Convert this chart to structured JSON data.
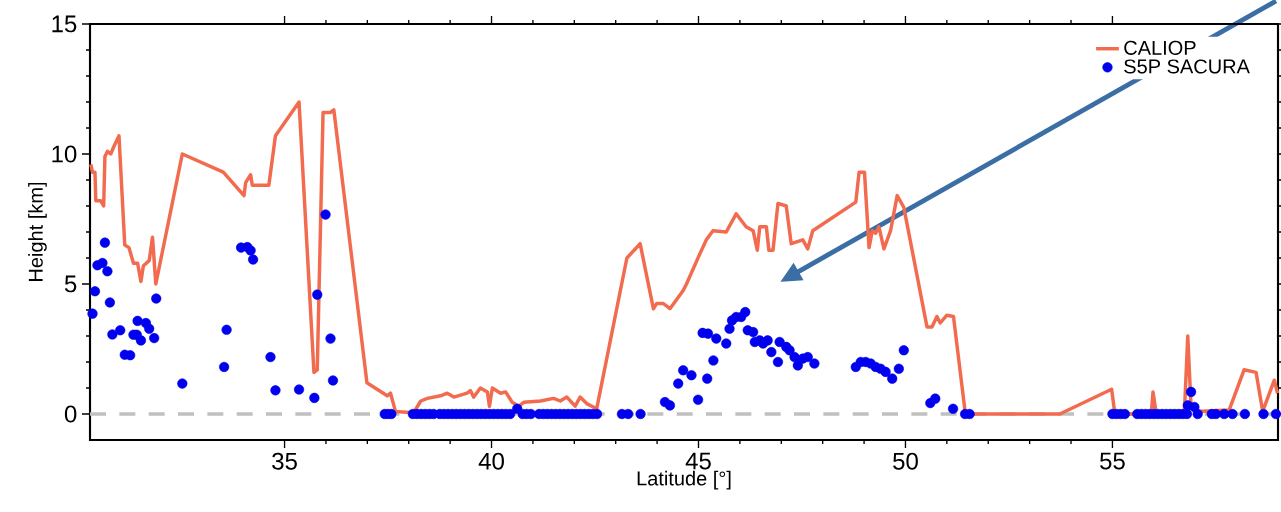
{
  "chart_data": {
    "type": "line",
    "xlabel": "Latitude [°]",
    "ylabel": "Height [km]",
    "xlim": [
      30.3,
      59
    ],
    "ylim": [
      -1,
      15
    ],
    "xticks": [
      35,
      40,
      45,
      50,
      55
    ],
    "yticks": [
      0,
      5,
      10,
      15
    ],
    "legend": "top right",
    "grid": false,
    "ref_lines": [
      {
        "axis": "y",
        "value": 0,
        "color": "#c0c0c0",
        "line_style": "dashed"
      }
    ],
    "series": [
      {
        "name": "CALIOP",
        "color": "#f26b4f",
        "marker": "none",
        "line_style": "solid",
        "x": [
          30.32,
          30.36,
          30.42,
          30.44,
          30.56,
          30.63,
          30.66,
          30.72,
          30.8,
          30.88,
          31.0,
          31.14,
          31.24,
          31.35,
          31.45,
          31.53,
          31.59,
          31.73,
          31.81,
          31.89,
          32.53,
          33.52,
          34.02,
          34.06,
          34.18,
          34.22,
          34.62,
          34.78,
          35.35,
          35.71,
          35.79,
          35.93,
          36.11,
          36.19,
          36.99,
          37.48,
          37.56,
          37.68,
          38.12,
          38.29,
          38.45,
          38.77,
          38.93,
          39.09,
          39.41,
          39.49,
          39.57,
          39.73,
          39.9,
          39.95,
          40.02,
          40.22,
          40.34,
          40.5,
          40.66,
          40.78,
          41.18,
          41.5,
          41.66,
          41.82,
          42.02,
          42.14,
          42.3,
          42.54,
          43.27,
          43.59,
          43.91,
          43.99,
          44.15,
          44.31,
          44.63,
          44.71,
          45.03,
          45.19,
          45.35,
          45.67,
          45.91,
          46.15,
          46.32,
          46.42,
          46.48,
          46.64,
          46.7,
          46.8,
          46.92,
          47.12,
          47.24,
          47.52,
          47.64,
          47.76,
          48.8,
          48.88,
          49.01,
          49.12,
          49.2,
          49.28,
          49.36,
          49.48,
          49.64,
          49.8,
          49.96,
          50.52,
          50.64,
          50.76,
          50.84,
          51.0,
          51.16,
          51.44,
          51.65,
          53.73,
          54.98,
          55.06,
          55.94,
          55.98,
          56.06,
          56.46,
          56.74,
          56.82,
          56.9,
          57.02,
          57.82,
          58.18,
          58.47,
          58.63,
          58.91,
          58.99
        ],
        "values": [
          9.6,
          9.3,
          9.3,
          8.2,
          8.2,
          8.0,
          9.9,
          10.1,
          10.0,
          10.3,
          10.7,
          6.5,
          6.4,
          5.8,
          5.8,
          5.1,
          5.7,
          5.9,
          6.8,
          5.0,
          10.0,
          9.3,
          8.4,
          8.9,
          9.2,
          8.8,
          8.8,
          10.7,
          12.0,
          1.6,
          1.7,
          11.6,
          11.6,
          11.7,
          1.2,
          0.7,
          0.8,
          0.1,
          0.05,
          0.5,
          0.6,
          0.7,
          0.8,
          0.65,
          0.8,
          0.9,
          0.65,
          1.0,
          0.85,
          0.3,
          1.0,
          0.8,
          0.85,
          0.45,
          0.3,
          0.45,
          0.5,
          0.6,
          0.5,
          0.65,
          0.3,
          0.65,
          0.4,
          0.2,
          6.0,
          6.55,
          4.05,
          4.25,
          4.25,
          4.05,
          4.75,
          5.0,
          6.15,
          6.7,
          7.05,
          7.0,
          7.7,
          7.2,
          7.05,
          6.3,
          7.2,
          7.2,
          6.3,
          6.3,
          8.1,
          8.0,
          6.55,
          6.7,
          6.35,
          7.05,
          8.15,
          9.3,
          9.3,
          6.4,
          7.05,
          6.95,
          7.2,
          6.35,
          7.05,
          8.4,
          7.95,
          3.35,
          3.35,
          3.75,
          3.5,
          3.8,
          3.75,
          0.1,
          0.0,
          0.0,
          0.95,
          0.0,
          0.0,
          0.85,
          0.0,
          0.1,
          0.1,
          3.0,
          0.25,
          0.1,
          0.15,
          1.7,
          1.6,
          0.1,
          1.3,
          0.8
        ]
      },
      {
        "name": "S5P SACURA",
        "type": "scatter",
        "color": "#0000ee",
        "marker": "circle",
        "x": [
          30.36,
          30.42,
          30.48,
          30.6,
          30.66,
          30.72,
          30.78,
          30.84,
          31.03,
          31.14,
          31.27,
          31.35,
          31.45,
          31.43,
          31.53,
          31.65,
          31.73,
          31.85,
          31.9,
          32.53,
          33.54,
          33.6,
          33.95,
          34.1,
          34.18,
          34.24,
          34.66,
          34.78,
          35.35,
          35.72,
          35.79,
          35.99,
          36.11,
          36.17,
          37.42,
          37.5,
          37.58,
          38.1,
          38.2,
          38.3,
          38.4,
          38.5,
          38.6,
          38.75,
          38.85,
          38.95,
          39.05,
          39.15,
          39.25,
          39.35,
          39.45,
          39.55,
          39.65,
          39.75,
          39.85,
          39.95,
          40.05,
          40.15,
          40.25,
          40.35,
          40.45,
          40.62,
          40.75,
          40.85,
          40.95,
          41.15,
          41.25,
          41.35,
          41.45,
          41.55,
          41.65,
          41.75,
          41.85,
          41.95,
          42.05,
          42.15,
          42.25,
          42.35,
          42.45,
          42.55,
          43.15,
          43.3,
          43.6,
          44.19,
          44.31,
          44.51,
          44.63,
          44.83,
          44.99,
          45.1,
          45.23,
          45.36,
          45.21,
          45.43,
          45.67,
          45.75,
          45.81,
          45.91,
          46.03,
          46.13,
          46.19,
          46.32,
          46.36,
          46.48,
          46.56,
          46.67,
          46.76,
          46.92,
          46.96,
          47.12,
          47.2,
          47.32,
          47.4,
          47.52,
          47.64,
          47.8,
          48.8,
          48.92,
          49.04,
          49.16,
          49.28,
          49.4,
          49.52,
          49.68,
          49.84,
          49.96,
          50.6,
          50.72,
          51.15,
          51.44,
          51.55,
          55.0,
          55.1,
          55.2,
          55.3,
          55.6,
          55.7,
          55.8,
          55.9,
          56.0,
          56.1,
          56.2,
          56.3,
          56.4,
          56.5,
          56.6,
          56.7,
          56.8,
          56.82,
          56.9,
          56.98,
          57.06,
          57.4,
          57.5,
          57.7,
          57.9,
          58.2,
          58.65,
          58.95
        ],
        "values": [
          3.86,
          4.72,
          5.72,
          5.81,
          6.59,
          5.49,
          4.29,
          3.06,
          3.22,
          2.28,
          2.26,
          3.05,
          3.58,
          3.05,
          2.83,
          3.5,
          3.28,
          2.92,
          4.44,
          1.17,
          1.81,
          3.24,
          6.4,
          6.42,
          6.29,
          5.94,
          2.19,
          0.91,
          0.94,
          0.62,
          4.59,
          7.67,
          2.9,
          1.29,
          0,
          0,
          0,
          0,
          0,
          0,
          0,
          0,
          0,
          0,
          0,
          0,
          0,
          0,
          0,
          0,
          0,
          0,
          0,
          0,
          0,
          0,
          0,
          0,
          0,
          0,
          0,
          0.2,
          0,
          0,
          0,
          0,
          0,
          0,
          0,
          0,
          0,
          0,
          0,
          0,
          0,
          0,
          0,
          0,
          0,
          0,
          0,
          0,
          0,
          0.46,
          0.33,
          1.17,
          1.68,
          1.49,
          0.55,
          3.12,
          3.09,
          2.06,
          1.36,
          2.9,
          2.71,
          3.28,
          3.6,
          3.73,
          3.73,
          3.92,
          3.22,
          3.15,
          2.77,
          2.83,
          2.71,
          2.83,
          2.38,
          2.0,
          2.77,
          2.58,
          2.45,
          2.19,
          1.87,
          2.13,
          2.19,
          1.94,
          1.81,
          2.0,
          2.0,
          1.94,
          1.81,
          1.74,
          1.62,
          1.36,
          1.74,
          2.45,
          0.42,
          0.59,
          0.2,
          0,
          0,
          0,
          0,
          0,
          0,
          0,
          0,
          0,
          0,
          0,
          0,
          0,
          0,
          0,
          0,
          0,
          0,
          0,
          0.33,
          0.85,
          0.27,
          0,
          0,
          0,
          0,
          0,
          0,
          0,
          0
        ]
      }
    ]
  }
}
